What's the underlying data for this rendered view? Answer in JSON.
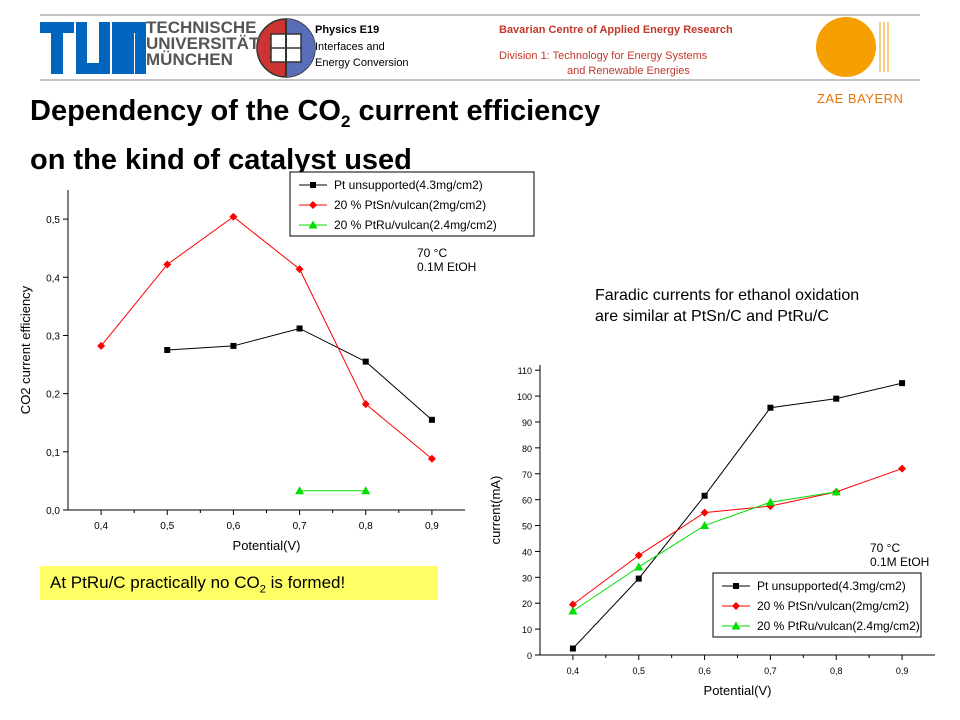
{
  "header": {
    "logo_lines": [
      "TECHNISCHE",
      "UNIVERSITÄT",
      "MÜNCHEN"
    ],
    "physics_title": "Physics E19",
    "physics_sub1": "Interfaces and",
    "physics_sub2": "Energy Conversion",
    "zae_title": "Bavarian Centre of Applied Energy Research",
    "zae_div1": "Division 1: Technology for Energy Systems",
    "zae_div2": "and Renewable Energies",
    "zae_name": "ZAE BAYERN",
    "colors": {
      "tum_blue": "#0065bd",
      "zae_orange": "#f5a000",
      "zae_text": "#c0392b"
    }
  },
  "slide": {
    "title_line1_a": "Dependency of the CO",
    "title_line1_sub": "2",
    "title_line1_b": " current efficiency",
    "title_line2": "on the kind of catalyst used",
    "note_line1": "Faradic currents for ethanol oxidation",
    "note_line2": "are similar at PtSn/C and PtRu/C",
    "callout_a": "At PtRu/C practically no CO",
    "callout_sub": "2",
    "callout_b": " is formed!"
  },
  "chart_data": [
    {
      "type": "line",
      "xlabel": "Potential(V)",
      "ylabel": "CO2 current efficiency",
      "xlim": [
        0.35,
        0.95
      ],
      "ylim": [
        0.0,
        0.55
      ],
      "xticks": [
        "0,4",
        "0,5",
        "0,6",
        "0,7",
        "0,8",
        "0,9"
      ],
      "yticks": [
        "0,0",
        "0,1",
        "0,2",
        "0,3",
        "0,4",
        "0,5"
      ],
      "condition_line1": "70 °C",
      "condition_line2": "0.1M EtOH",
      "legend_position": "top-right",
      "series": [
        {
          "name": "Pt unsupported(4.3mg/cm2)",
          "color": "#000000",
          "marker": "square",
          "x": [
            0.5,
            0.6,
            0.7,
            0.8,
            0.9
          ],
          "y": [
            0.275,
            0.282,
            0.312,
            0.255,
            0.155
          ]
        },
        {
          "name": "20 % PtSn/vulcan(2mg/cm2)",
          "color": "#ff0000",
          "marker": "diamond",
          "x": [
            0.4,
            0.5,
            0.6,
            0.7,
            0.8,
            0.9
          ],
          "y": [
            0.282,
            0.422,
            0.504,
            0.414,
            0.182,
            0.088
          ]
        },
        {
          "name": "20 % PtRu/vulcan(2.4mg/cm2)",
          "color": "#00dd00",
          "marker": "triangle",
          "x": [
            0.7,
            0.8
          ],
          "y": [
            0.033,
            0.033
          ]
        }
      ]
    },
    {
      "type": "line",
      "xlabel": "Potential(V)",
      "ylabel": "current(mA)",
      "xlim": [
        0.35,
        0.95
      ],
      "ylim": [
        0,
        112
      ],
      "xticks": [
        "0,4",
        "0,5",
        "0,6",
        "0,7",
        "0,8",
        "0,9"
      ],
      "yticks": [
        "0",
        "10",
        "20",
        "30",
        "40",
        "50",
        "60",
        "70",
        "80",
        "90",
        "100",
        "110"
      ],
      "condition_line1": "70 °C",
      "condition_line2": "0.1M EtOH",
      "legend_position": "bottom-right",
      "series": [
        {
          "name": "Pt unsupported(4.3mg/cm2)",
          "color": "#000000",
          "marker": "square",
          "x": [
            0.4,
            0.5,
            0.6,
            0.7,
            0.8,
            0.9
          ],
          "y": [
            2.5,
            29.5,
            61.5,
            95.5,
            99,
            105
          ]
        },
        {
          "name": "20 % PtSn/vulcan(2mg/cm2)",
          "color": "#ff0000",
          "marker": "diamond",
          "x": [
            0.4,
            0.5,
            0.6,
            0.7,
            0.8,
            0.9
          ],
          "y": [
            19.5,
            38.5,
            55,
            57.5,
            63,
            72
          ]
        },
        {
          "name": "20 % PtRu/vulcan(2.4mg/cm2)",
          "color": "#00dd00",
          "marker": "triangle",
          "x": [
            0.4,
            0.5,
            0.6,
            0.7,
            0.8
          ],
          "y": [
            17,
            34,
            50,
            59,
            63
          ]
        }
      ]
    }
  ]
}
